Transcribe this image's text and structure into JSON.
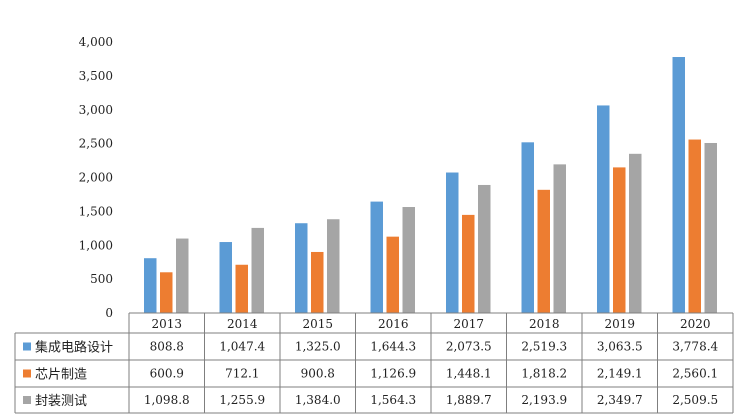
{
  "chart_data": {
    "type": "bar",
    "categories": [
      "2013",
      "2014",
      "2015",
      "2016",
      "2017",
      "2018",
      "2019",
      "2020"
    ],
    "ylim": [
      0,
      4000
    ],
    "ytick_labels": [
      "0",
      "500",
      "1,000",
      "1,500",
      "2,000",
      "2,500",
      "3,000",
      "3,500",
      "4,000"
    ],
    "grid": false,
    "legend": "data-table-below",
    "series": [
      {
        "name": "集成电路设计",
        "color": "#5b9bd5",
        "values": [
          808.8,
          1047.4,
          1325.0,
          1644.3,
          2073.5,
          2519.3,
          3063.5,
          3778.4
        ],
        "labels": [
          "808.8",
          "1,047.4",
          "1,325.0",
          "1,644.3",
          "2,073.5",
          "2,519.3",
          "3,063.5",
          "3,778.4"
        ]
      },
      {
        "name": "芯片制造",
        "color": "#ed7d31",
        "values": [
          600.9,
          712.1,
          900.8,
          1126.9,
          1448.1,
          1818.2,
          2149.1,
          2560.1
        ],
        "labels": [
          "600.9",
          "712.1",
          "900.8",
          "1,126.9",
          "1,448.1",
          "1,818.2",
          "2,149.1",
          "2,560.1"
        ]
      },
      {
        "name": "封装测试",
        "color": "#a5a5a5",
        "values": [
          1098.8,
          1255.9,
          1384.0,
          1564.3,
          1889.7,
          2193.9,
          2349.7,
          2509.5
        ],
        "labels": [
          "1,098.8",
          "1,255.9",
          "1,384.0",
          "1,564.3",
          "1,889.7",
          "2,193.9",
          "2,349.7",
          "2,509.5"
        ]
      }
    ]
  }
}
